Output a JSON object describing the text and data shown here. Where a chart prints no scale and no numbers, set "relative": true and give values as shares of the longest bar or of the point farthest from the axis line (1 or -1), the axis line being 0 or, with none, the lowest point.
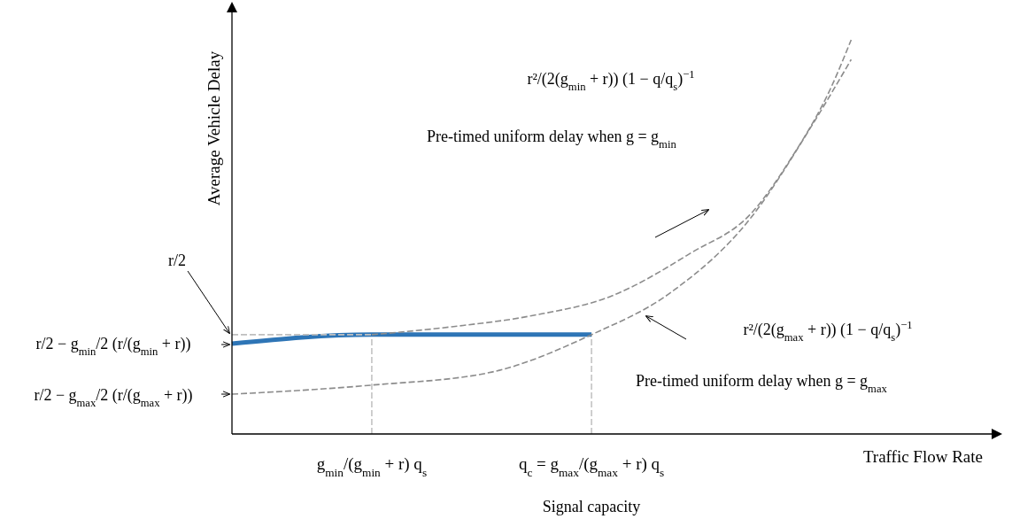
{
  "chart_data": {
    "type": "line",
    "relative": true,
    "xlabel": "Traffic Flow Rate",
    "ylabel": "Average Vehicle Delay",
    "categories": [
      null,
      null,
      null,
      null,
      null,
      null,
      null,
      "g$_{min}$/(g$_{min}$ + r) q$_{s}$",
      null,
      null,
      null,
      null,
      null,
      null,
      null,
      null,
      null,
      null,
      "q$_{c}$ = g$_{max}$/(g$_{max}$ + r) q$_{s}$",
      null,
      null,
      null,
      null,
      null,
      null,
      null,
      null,
      null,
      null,
      null,
      null,
      null,
      null,
      null,
      null,
      null,
      null,
      null,
      null
    ],
    "series": [
      {
        "values": [
          0.252,
          null,
          null,
          null,
          null,
          null,
          null,
          0.252,
          null,
          null,
          null,
          null,
          null,
          null,
          null,
          null,
          null,
          null,
          null,
          null,
          null,
          null,
          null,
          null,
          null,
          null,
          null,
          null,
          null,
          null,
          null,
          null,
          null,
          null,
          null,
          null,
          null,
          null,
          null
        ],
        "color": "#bfbfbf",
        "line_style": "dashed"
      },
      {
        "values": [
          null,
          null,
          null,
          null,
          null,
          null,
          null,
          0.252,
          null,
          null,
          null,
          0.272,
          null,
          null,
          null,
          0.3,
          null,
          null,
          null,
          0.35,
          null,
          null,
          null,
          0.46,
          null,
          null,
          0.56,
          null,
          0.7,
          null,
          0.88,
          1,
          null,
          null,
          null,
          null,
          null,
          null,
          null
        ],
        "color": "#8c8c8c",
        "line_style": "dashed"
      },
      {
        "values": [
          0.101,
          null,
          null,
          null,
          null,
          null,
          null,
          0.124,
          null,
          null,
          null,
          null,
          null,
          0.157,
          null,
          null,
          null,
          null,
          0.252,
          null,
          null,
          null,
          0.36,
          null,
          null,
          null,
          0.55,
          null,
          null,
          0.78,
          null,
          0.95,
          null,
          null,
          null,
          null,
          null,
          null,
          null
        ],
        "color": "#8c8c8c",
        "line_style": "dashed"
      },
      {
        "values": [
          0.229,
          null,
          null,
          null,
          null,
          null,
          null,
          0.252,
          null,
          null,
          null,
          null,
          null,
          null,
          null,
          null,
          null,
          null,
          0.252,
          null,
          null,
          null,
          null,
          null,
          null,
          null,
          null,
          null,
          null,
          null,
          null,
          null,
          null,
          null,
          null,
          null,
          null,
          null,
          null
        ],
        "color": "#2e75b6",
        "line_style": "solid"
      }
    ],
    "ref_lines": [
      {
        "axis": "x",
        "value": "g$_{min}$/(g$_{min}$ + r) q$_{s}$",
        "color": "#bfbfbf",
        "line_style": "dashed"
      },
      {
        "axis": "x",
        "value": "q$_{c}$ = g$_{max}$/(g$_{max}$ + r) q$_{s}$",
        "color": "#bfbfbf",
        "line_style": "dashed"
      }
    ],
    "annotations": [
      "r²/(2(g$_{min}$ + r)) (1 − q/q$_{s}$)$^{−1}$",
      "Pre-timed uniform delay when g = g$_{min}$",
      "r²/(2(g$_{max}$ + r)) (1 − q/q$_{s}$)$^{−1}$",
      "Pre-timed uniform delay when g = g$_{max}$",
      "r/2",
      "r/2 − g$_{min}$/2 (r/(g$_{min}$ + r))",
      "r/2 − g$_{max}$/2 (r/(g$_{max}$ + r))",
      "Signal capacity"
    ]
  }
}
